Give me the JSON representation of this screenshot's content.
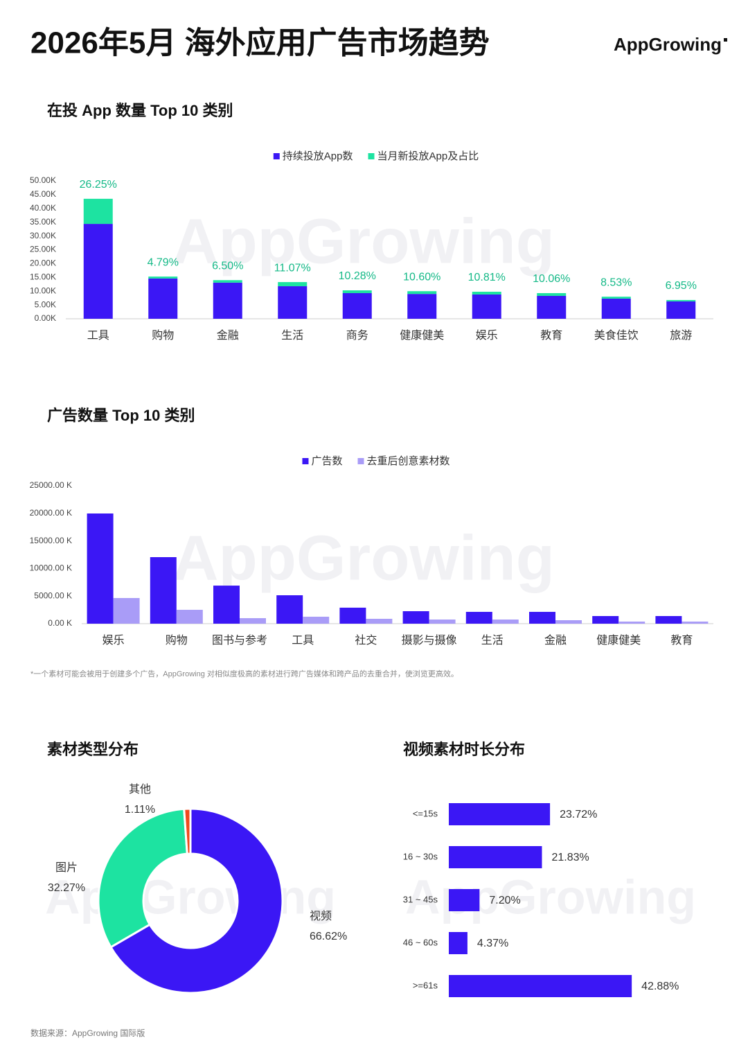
{
  "header": {
    "title": "2026年5月 海外应用广告市场趋势",
    "logo": "AppGrowing"
  },
  "watermark": "AppGrowing",
  "source": "数据来源：AppGrowing 国际版",
  "chart_data": [
    {
      "type": "bar",
      "stacked": true,
      "title": "在投 App 数量 Top 10 类别",
      "categories": [
        "工具",
        "购物",
        "金融",
        "生活",
        "商务",
        "健康健美",
        "娱乐",
        "教育",
        "美食佳饮",
        "旅游"
      ],
      "series": [
        {
          "name": "持续投放App数",
          "color": "#3b17f5",
          "values": [
            34.4,
            14.6,
            13.1,
            11.8,
            9.3,
            9.0,
            8.8,
            8.3,
            7.3,
            6.3
          ]
        },
        {
          "name": "当月新投放App及占比",
          "color": "#1de3a1",
          "values": [
            9.1,
            0.7,
            0.9,
            1.5,
            1.0,
            1.0,
            1.0,
            1.0,
            0.7,
            0.5
          ]
        }
      ],
      "share_labels": [
        "26.25%",
        "4.79%",
        "6.50%",
        "11.07%",
        "10.28%",
        "10.60%",
        "10.81%",
        "10.06%",
        "8.53%",
        "6.95%"
      ],
      "ylim": [
        0,
        50
      ],
      "yticks": [
        {
          "value": 0,
          "label": "0.00K"
        },
        {
          "value": 5,
          "label": "5.00K"
        },
        {
          "value": 10,
          "label": "10.00K"
        },
        {
          "value": 15,
          "label": "15.00K"
        },
        {
          "value": 20,
          "label": "20.00K"
        },
        {
          "value": 25,
          "label": "25.00K"
        },
        {
          "value": 30,
          "label": "30.00K"
        },
        {
          "value": 35,
          "label": "35.00K"
        },
        {
          "value": 40,
          "label": "40.00K"
        },
        {
          "value": 45,
          "label": "45.00K"
        },
        {
          "value": 50,
          "label": "50.00K"
        }
      ],
      "grid": false,
      "legend": "top"
    },
    {
      "type": "bar",
      "stacked": false,
      "title": "广告数量 Top 10 类别",
      "categories": [
        "娱乐",
        "购物",
        "图书与参考",
        "工具",
        "社交",
        "摄影与摄像",
        "生活",
        "金融",
        "健康健美",
        "教育"
      ],
      "series": [
        {
          "name": "广告数",
          "color": "#3b17f5",
          "values": [
            19975,
            12060,
            6900,
            5150,
            2900,
            2260,
            2140,
            2140,
            1380,
            1380
          ]
        },
        {
          "name": "去重后创意素材数",
          "color": "#a99cf7",
          "values": [
            4650,
            2510,
            1000,
            1260,
            880,
            750,
            750,
            630,
            380,
            380
          ]
        }
      ],
      "ylim": [
        0,
        25000
      ],
      "yticks": [
        {
          "value": 0,
          "label": "0.00 K"
        },
        {
          "value": 5000,
          "label": "5000.00 K"
        },
        {
          "value": 10000,
          "label": "10000.00 K"
        },
        {
          "value": 15000,
          "label": "15000.00 K"
        },
        {
          "value": 20000,
          "label": "20000.00 K"
        },
        {
          "value": 25000,
          "label": "25000.00 K"
        }
      ],
      "grid": false,
      "legend": "top",
      "note": "*一个素材可能会被用于创建多个广告，AppGrowing 对相似度极高的素材进行跨广告媒体和跨产品的去重合并，使浏览更高效。"
    },
    {
      "type": "pie",
      "donut": true,
      "title": "素材类型分布",
      "categories": [
        "视频",
        "图片",
        "其他"
      ],
      "values": [
        66.62,
        32.27,
        1.11
      ],
      "value_labels": [
        "66.62%",
        "32.27%",
        "1.11%"
      ],
      "colors": [
        "#3b17f5",
        "#1de3a1",
        "#f04a1d"
      ]
    },
    {
      "type": "bar",
      "orientation": "horizontal",
      "title": "视频素材时长分布",
      "categories": [
        "<=15s",
        "16 ~ 30s",
        "31 ~ 45s",
        "46 ~ 60s",
        ">=61s"
      ],
      "values": [
        23.72,
        21.83,
        7.2,
        4.37,
        42.88
      ],
      "value_labels": [
        "23.72%",
        "21.83%",
        "7.20%",
        "4.37%",
        "42.88%"
      ],
      "color": "#3b17f5"
    }
  ]
}
